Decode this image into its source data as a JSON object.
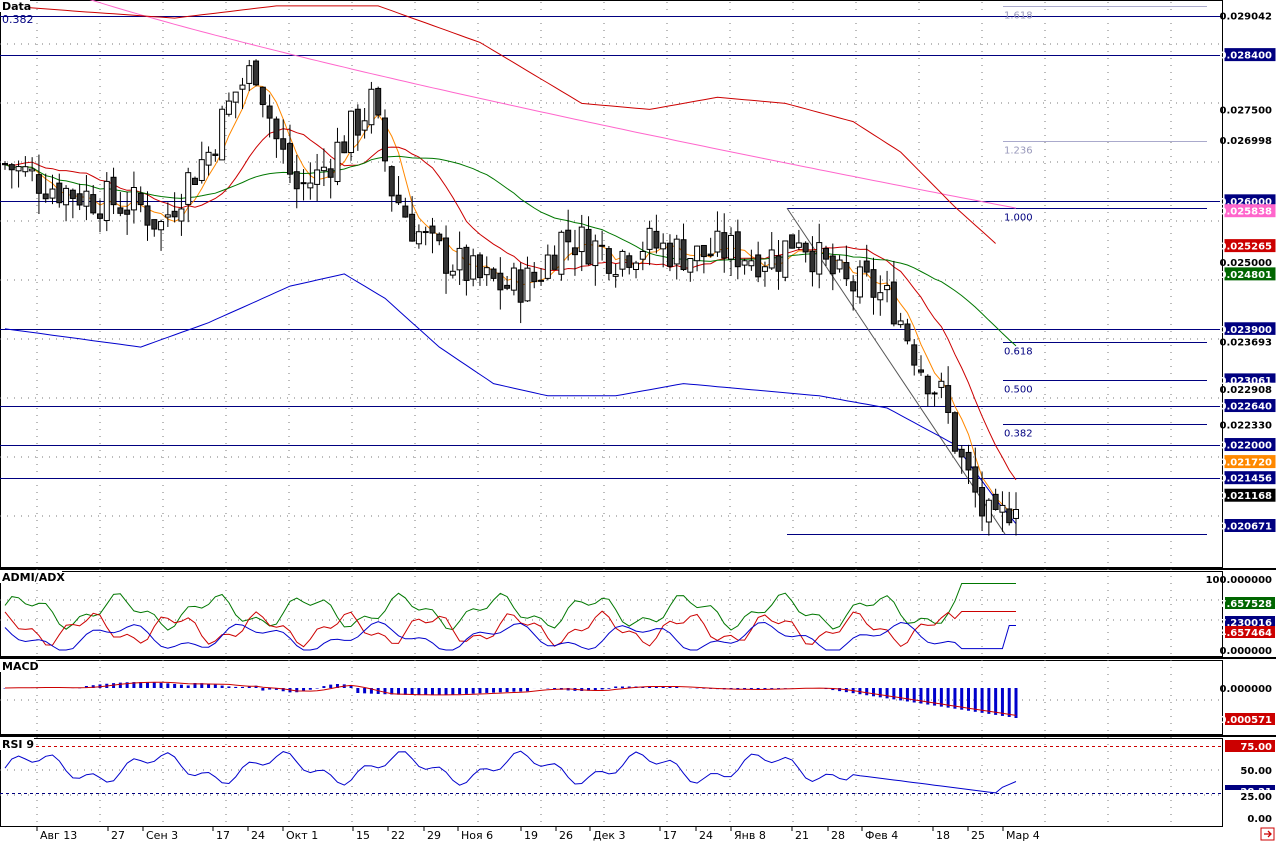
{
  "panels": {
    "main": {
      "label": "Data",
      "sublabel": "0.382"
    },
    "admi": {
      "label": "ADMI/ADX"
    },
    "macd": {
      "label": "MACD"
    },
    "rsi": {
      "label": "RSI 9"
    }
  },
  "chart_data": {
    "type": "candlestick",
    "y_axis_main": {
      "ylim": [
        0.2,
        0.0292
      ],
      "ticks": [
        "0.029042",
        "0.028400",
        "0.027500",
        "0.026998",
        "0.026000",
        "0.025838",
        "0.025265",
        "0.025000",
        "0.024801",
        "0.023900",
        "0.023693",
        "0.023061",
        "0.022908",
        "0.022640",
        "0.022330",
        "0.022000",
        "0.021720",
        "0.021456",
        "0.021168",
        "0.020671"
      ]
    },
    "price_tags": [
      {
        "value": 0.029042,
        "text": "0.029042",
        "bg": "#ffffff",
        "fg": "#000000"
      },
      {
        "value": 0.0284,
        "text": "0.028400",
        "bg": "#000080",
        "fg": "#ffffff"
      },
      {
        "value": 0.0275,
        "text": "0.027500",
        "bg": "#ffffff",
        "fg": "#000000"
      },
      {
        "value": 0.026998,
        "text": "0.026998",
        "bg": "#ffffff",
        "fg": "#000000"
      },
      {
        "value": 0.026,
        "text": "0.026000",
        "bg": "#000080",
        "fg": "#ffffff"
      },
      {
        "value": 0.025838,
        "text": "0.025838",
        "bg": "#ff66cc",
        "fg": "#ffffff"
      },
      {
        "value": 0.025265,
        "text": "0.025265",
        "bg": "#cc0000",
        "fg": "#ffffff"
      },
      {
        "value": 0.025,
        "text": "0.025000",
        "bg": "#ffffff",
        "fg": "#000000"
      },
      {
        "value": 0.024801,
        "text": "0.024801",
        "bg": "#006600",
        "fg": "#ffffff"
      },
      {
        "value": 0.0239,
        "text": "0.023900",
        "bg": "#000080",
        "fg": "#ffffff"
      },
      {
        "value": 0.023693,
        "text": "0.023693",
        "bg": "#ffffff",
        "fg": "#000000"
      },
      {
        "value": 0.023061,
        "text": "0.023061",
        "bg": "#000080",
        "fg": "#ffffff"
      },
      {
        "value": 0.022908,
        "text": "0.022908",
        "bg": "#ffffff",
        "fg": "#000000"
      },
      {
        "value": 0.02264,
        "text": "0.022640",
        "bg": "#000080",
        "fg": "#ffffff"
      },
      {
        "value": 0.02233,
        "text": "0.022330",
        "bg": "#ffffff",
        "fg": "#000000"
      },
      {
        "value": 0.022,
        "text": "0.022000",
        "bg": "#000080",
        "fg": "#ffffff"
      },
      {
        "value": 0.02172,
        "text": "0.021720",
        "bg": "#ff8800",
        "fg": "#ffffff"
      },
      {
        "value": 0.021456,
        "text": "0.021456",
        "bg": "#000080",
        "fg": "#ffffff"
      },
      {
        "value": 0.021168,
        "text": "0.021168",
        "bg": "#000000",
        "fg": "#ffffff"
      },
      {
        "value": 0.020671,
        "text": "0.020671",
        "bg": "#000080",
        "fg": "#ffffff"
      }
    ],
    "horizontal_levels": [
      0.029042,
      0.0284,
      0.026,
      0.0239,
      0.02264,
      0.022,
      0.021456
    ],
    "fibonacci": {
      "high": 0.02588,
      "low": 0.02053,
      "levels": [
        {
          "ratio": "1.618",
          "value": 0.0292
        },
        {
          "ratio": "1.236",
          "value": 0.02699
        },
        {
          "ratio": "1.000",
          "value": 0.02588
        },
        {
          "ratio": "0.618",
          "value": 0.02369
        },
        {
          "ratio": "0.500",
          "value": 0.02306
        },
        {
          "ratio": "0.382",
          "value": 0.02233
        }
      ]
    },
    "x_tick_labels": [
      "Авг 13",
      "27",
      "Сен 3",
      "17",
      "24",
      "Окт 1",
      "15",
      "22",
      "29",
      "Ноя 6",
      "19",
      "26",
      "Дек 3",
      "17",
      "24",
      "Янв 8",
      "21",
      "28",
      "Фев 4",
      "18",
      "25",
      "Мар 4"
    ],
    "adx_axis": [
      "100.000000",
      "67.657528",
      "37.230016",
      "24.657464",
      "0.000000"
    ],
    "macd_axis": [
      "0.000000",
      "-0.000571"
    ],
    "rsi_axis": [
      "75.00",
      "50.00",
      "28.21",
      "25.00",
      "0.00"
    ],
    "colors": {
      "ma_fast": "#ff8800",
      "ma_mid": "#cc0000",
      "ma_slow": "#007700",
      "ma_long": "#ff66cc",
      "lower_band": "#0000cc",
      "level_line": "#000080",
      "plus_di": "#cc0000",
      "minus_di": "#007700",
      "adx": "#0000cc",
      "macd_hist": "#0000cc",
      "macd_signal": "#cc0000",
      "rsi_line": "#0000cc"
    }
  }
}
